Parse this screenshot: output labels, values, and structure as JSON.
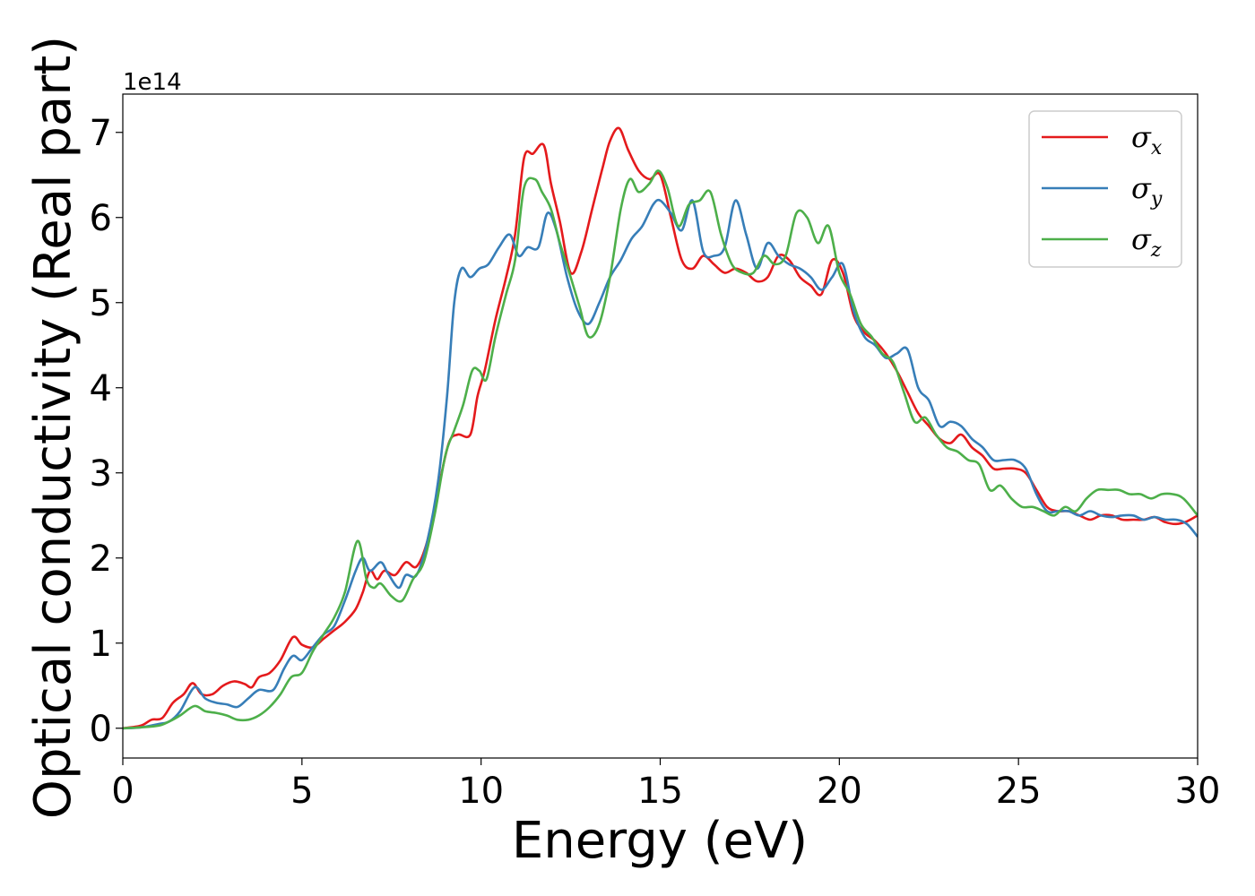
{
  "chart_data": {
    "type": "line",
    "xlabel": "Energy (eV)",
    "ylabel": "Optical conductivity (Real part)",
    "y_offset_text": "1e14",
    "xlim": [
      0,
      30
    ],
    "ylim": [
      -0.35,
      7.45
    ],
    "xticks": [
      0,
      5,
      10,
      15,
      20,
      25,
      30
    ],
    "xtick_labels": [
      "0",
      "5",
      "10",
      "15",
      "20",
      "25",
      "30"
    ],
    "yticks": [
      0,
      1,
      2,
      3,
      4,
      5,
      6,
      7
    ],
    "ytick_labels": [
      "0",
      "1",
      "2",
      "3",
      "4",
      "5",
      "6",
      "7"
    ],
    "grid": false,
    "legend_position": "top-right",
    "series": [
      {
        "name": "σx",
        "symbol": "σ",
        "subscript": "x",
        "color": "#e41a1c",
        "x": [
          0,
          0.5,
          0.8,
          1.1,
          1.4,
          1.7,
          1.95,
          2.2,
          2.5,
          2.8,
          3.1,
          3.4,
          3.6,
          3.8,
          4.1,
          4.4,
          4.75,
          5.0,
          5.3,
          5.6,
          5.9,
          6.2,
          6.5,
          6.7,
          6.9,
          7.1,
          7.3,
          7.6,
          7.9,
          8.2,
          8.5,
          8.8,
          9.1,
          9.35,
          9.7,
          9.9,
          10.1,
          10.4,
          10.7,
          10.95,
          11.2,
          11.45,
          11.75,
          11.95,
          12.2,
          12.5,
          12.8,
          13.1,
          13.4,
          13.6,
          13.85,
          14.1,
          14.4,
          14.7,
          15.0,
          15.3,
          15.6,
          15.9,
          16.2,
          16.5,
          16.8,
          17.1,
          17.4,
          17.7,
          18.0,
          18.3,
          18.6,
          18.9,
          19.2,
          19.5,
          19.8,
          20.1,
          20.4,
          20.7,
          21.0,
          21.3,
          21.6,
          21.9,
          22.2,
          22.5,
          22.8,
          23.1,
          23.4,
          23.7,
          24.0,
          24.3,
          24.6,
          24.9,
          25.2,
          25.5,
          25.8,
          26.1,
          26.4,
          26.7,
          27.0,
          27.3,
          27.6,
          27.9,
          28.2,
          28.5,
          28.8,
          29.1,
          29.4,
          29.7,
          30.0
        ],
        "y": [
          0,
          0.03,
          0.1,
          0.12,
          0.3,
          0.4,
          0.53,
          0.4,
          0.4,
          0.5,
          0.55,
          0.52,
          0.48,
          0.6,
          0.65,
          0.8,
          1.07,
          0.98,
          0.95,
          1.05,
          1.15,
          1.25,
          1.4,
          1.6,
          1.85,
          1.75,
          1.85,
          1.8,
          1.95,
          1.9,
          2.2,
          2.8,
          3.35,
          3.45,
          3.45,
          3.9,
          4.2,
          4.8,
          5.3,
          5.8,
          6.7,
          6.75,
          6.85,
          6.4,
          5.95,
          5.35,
          5.6,
          6.1,
          6.6,
          6.9,
          7.05,
          6.8,
          6.55,
          6.45,
          6.5,
          6.0,
          5.5,
          5.4,
          5.55,
          5.45,
          5.35,
          5.4,
          5.35,
          5.25,
          5.3,
          5.55,
          5.5,
          5.3,
          5.2,
          5.1,
          5.5,
          5.35,
          4.85,
          4.65,
          4.55,
          4.4,
          4.2,
          3.95,
          3.7,
          3.55,
          3.4,
          3.35,
          3.45,
          3.3,
          3.2,
          3.05,
          3.05,
          3.05,
          3.0,
          2.8,
          2.6,
          2.55,
          2.55,
          2.5,
          2.45,
          2.5,
          2.5,
          2.45,
          2.45,
          2.45,
          2.48,
          2.42,
          2.4,
          2.43,
          2.5
        ]
      },
      {
        "name": "σy",
        "symbol": "σ",
        "subscript": "y",
        "color": "#377eb8",
        "x": [
          0,
          0.5,
          1.0,
          1.3,
          1.6,
          2.0,
          2.3,
          2.6,
          2.9,
          3.2,
          3.5,
          3.8,
          4.2,
          4.5,
          4.75,
          5.0,
          5.3,
          5.6,
          5.9,
          6.2,
          6.5,
          6.7,
          6.9,
          7.2,
          7.4,
          7.7,
          7.9,
          8.2,
          8.5,
          8.8,
          9.05,
          9.25,
          9.45,
          9.7,
          9.95,
          10.2,
          10.5,
          10.8,
          11.05,
          11.3,
          11.6,
          11.85,
          12.1,
          12.4,
          12.7,
          13.0,
          13.3,
          13.6,
          13.9,
          14.2,
          14.5,
          14.8,
          15.0,
          15.3,
          15.6,
          15.9,
          16.2,
          16.5,
          16.8,
          17.1,
          17.4,
          17.7,
          18.0,
          18.3,
          18.6,
          18.9,
          19.2,
          19.5,
          19.8,
          20.1,
          20.4,
          20.7,
          21.0,
          21.3,
          21.6,
          21.9,
          22.2,
          22.5,
          22.8,
          23.1,
          23.4,
          23.7,
          24.0,
          24.3,
          24.6,
          24.9,
          25.2,
          25.5,
          25.8,
          26.1,
          26.4,
          26.7,
          27.0,
          27.3,
          27.6,
          27.9,
          28.2,
          28.5,
          28.8,
          29.1,
          29.4,
          29.7,
          30.0
        ],
        "y": [
          0,
          0.01,
          0.05,
          0.08,
          0.2,
          0.48,
          0.35,
          0.3,
          0.28,
          0.25,
          0.35,
          0.45,
          0.45,
          0.7,
          0.85,
          0.8,
          0.95,
          1.1,
          1.2,
          1.5,
          1.85,
          2.0,
          1.85,
          1.95,
          1.82,
          1.65,
          1.8,
          1.8,
          2.2,
          2.9,
          3.9,
          5.0,
          5.4,
          5.3,
          5.4,
          5.45,
          5.65,
          5.8,
          5.55,
          5.65,
          5.65,
          6.05,
          5.85,
          5.3,
          4.9,
          4.75,
          5.0,
          5.3,
          5.5,
          5.75,
          5.9,
          6.15,
          6.2,
          6.05,
          5.85,
          6.2,
          5.6,
          5.55,
          5.65,
          6.2,
          5.8,
          5.4,
          5.7,
          5.55,
          5.45,
          5.4,
          5.3,
          5.15,
          5.3,
          5.45,
          4.9,
          4.6,
          4.5,
          4.35,
          4.4,
          4.45,
          4.0,
          3.85,
          3.55,
          3.6,
          3.55,
          3.4,
          3.3,
          3.15,
          3.15,
          3.15,
          3.05,
          2.75,
          2.55,
          2.55,
          2.55,
          2.5,
          2.55,
          2.5,
          2.48,
          2.5,
          2.5,
          2.45,
          2.48,
          2.45,
          2.45,
          2.4,
          2.25
        ]
      },
      {
        "name": "σz",
        "symbol": "σ",
        "subscript": "z",
        "color": "#4daf4a",
        "x": [
          0,
          0.5,
          1.0,
          1.3,
          1.6,
          2.0,
          2.3,
          2.6,
          2.9,
          3.2,
          3.5,
          3.8,
          4.1,
          4.4,
          4.7,
          5.0,
          5.3,
          5.6,
          5.9,
          6.2,
          6.55,
          6.8,
          7.0,
          7.2,
          7.5,
          7.8,
          8.1,
          8.4,
          8.7,
          9.0,
          9.25,
          9.5,
          9.75,
          9.95,
          10.15,
          10.4,
          10.7,
          10.95,
          11.2,
          11.5,
          11.7,
          11.95,
          12.2,
          12.5,
          12.75,
          13.0,
          13.3,
          13.6,
          13.9,
          14.15,
          14.4,
          14.7,
          14.95,
          15.2,
          15.5,
          15.8,
          16.1,
          16.4,
          16.7,
          17.0,
          17.3,
          17.6,
          17.9,
          18.2,
          18.5,
          18.8,
          19.1,
          19.4,
          19.7,
          20.0,
          20.3,
          20.6,
          20.9,
          21.2,
          21.5,
          21.8,
          22.1,
          22.4,
          22.7,
          23.0,
          23.3,
          23.6,
          23.9,
          24.2,
          24.5,
          24.8,
          25.1,
          25.4,
          25.7,
          26.0,
          26.3,
          26.6,
          26.9,
          27.2,
          27.5,
          27.8,
          28.1,
          28.4,
          28.7,
          29.0,
          29.3,
          29.6,
          30.0
        ],
        "y": [
          0,
          0.01,
          0.03,
          0.08,
          0.15,
          0.26,
          0.2,
          0.18,
          0.15,
          0.1,
          0.1,
          0.15,
          0.25,
          0.4,
          0.6,
          0.65,
          0.9,
          1.1,
          1.3,
          1.6,
          2.2,
          1.75,
          1.65,
          1.7,
          1.55,
          1.5,
          1.75,
          1.95,
          2.5,
          3.2,
          3.5,
          3.8,
          4.2,
          4.2,
          4.1,
          4.6,
          5.1,
          5.5,
          6.35,
          6.45,
          6.3,
          6.1,
          5.7,
          5.3,
          4.95,
          4.6,
          4.75,
          5.3,
          6.1,
          6.45,
          6.3,
          6.4,
          6.55,
          6.35,
          5.9,
          6.15,
          6.2,
          6.3,
          5.8,
          5.45,
          5.35,
          5.35,
          5.55,
          5.45,
          5.55,
          6.05,
          6.0,
          5.7,
          5.9,
          5.35,
          5.1,
          4.75,
          4.6,
          4.4,
          4.3,
          3.95,
          3.6,
          3.65,
          3.45,
          3.3,
          3.25,
          3.15,
          3.1,
          2.8,
          2.85,
          2.7,
          2.6,
          2.6,
          2.55,
          2.5,
          2.6,
          2.55,
          2.7,
          2.8,
          2.8,
          2.8,
          2.75,
          2.75,
          2.7,
          2.75,
          2.75,
          2.7,
          2.5
        ]
      }
    ]
  }
}
